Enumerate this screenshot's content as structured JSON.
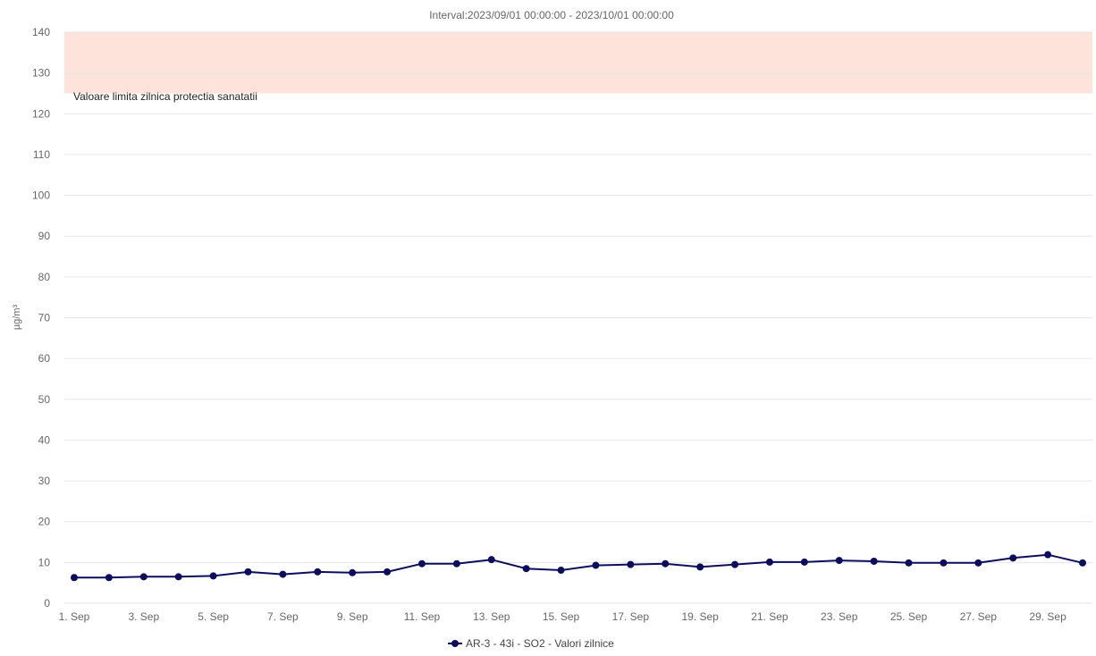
{
  "chart_data": {
    "type": "line",
    "title": "",
    "subtitle": "Interval:2023/09/01 00:00:00 - 2023/10/01 00:00:00",
    "xlabel": "",
    "ylabel": "µg/m³",
    "ylim": [
      0,
      140
    ],
    "y_ticks": [
      0,
      10,
      20,
      30,
      40,
      50,
      60,
      70,
      80,
      90,
      100,
      110,
      120,
      130,
      140
    ],
    "categories": [
      "1. Sep",
      "2. Sep",
      "3. Sep",
      "4. Sep",
      "5. Sep",
      "6. Sep",
      "7. Sep",
      "8. Sep",
      "9. Sep",
      "10. Sep",
      "11. Sep",
      "12. Sep",
      "13. Sep",
      "14. Sep",
      "15. Sep",
      "16. Sep",
      "17. Sep",
      "18. Sep",
      "19. Sep",
      "20. Sep",
      "21. Sep",
      "22. Sep",
      "23. Sep",
      "24. Sep",
      "25. Sep",
      "26. Sep",
      "27. Sep",
      "28. Sep",
      "29. Sep",
      "30. Sep"
    ],
    "x_tick_labels": [
      "1. Sep",
      "3. Sep",
      "5. Sep",
      "7. Sep",
      "9. Sep",
      "11. Sep",
      "13. Sep",
      "15. Sep",
      "17. Sep",
      "19. Sep",
      "21. Sep",
      "23. Sep",
      "25. Sep",
      "27. Sep",
      "29. Sep"
    ],
    "series": [
      {
        "name": "AR-3 - 43i - SO2 - Valori zilnice",
        "color": "#0d0d5e",
        "values": [
          6.3,
          6.3,
          6.5,
          6.5,
          6.7,
          7.7,
          7.1,
          7.7,
          7.5,
          7.7,
          9.7,
          9.7,
          10.7,
          8.5,
          8.1,
          9.3,
          9.5,
          9.7,
          8.9,
          9.5,
          10.1,
          10.1,
          10.5,
          10.3,
          9.9,
          9.9,
          9.9,
          11.1,
          11.9,
          9.9
        ]
      }
    ],
    "plot_band": {
      "from": 125,
      "to": 140,
      "label": "Valoare limita zilnica protectia sanatatii",
      "color": "#fde3d9"
    },
    "grid": true,
    "legend_position": "bottom-center"
  }
}
